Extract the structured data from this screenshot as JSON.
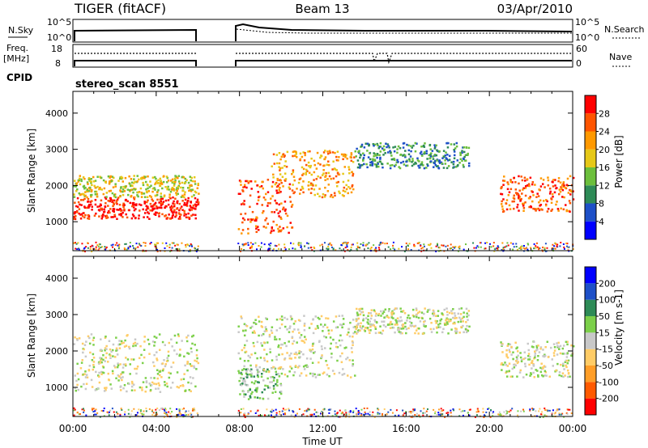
{
  "header": {
    "station": "TIGER (fitACF)",
    "beam": "Beam 13",
    "date": "03/Apr/2010"
  },
  "panels_top": {
    "nsky_label": "N.Sky",
    "nsky_ticks": [
      "10^5",
      "10^0"
    ],
    "nsearch_label": "N.Search",
    "nsearch_ticks": [
      "10^5",
      "10^0"
    ],
    "freq_label_line1": "Freq.",
    "freq_label_line2": "[MHz]",
    "freq_ticks": [
      "18",
      "8"
    ],
    "nave_label": "Nave",
    "nave_ticks": [
      "60",
      "0"
    ],
    "cpid_label": "CPID",
    "cpid_value": "stereo_scan 8551"
  },
  "chart_data": [
    {
      "type": "heatmap",
      "name": "power-panel",
      "ylabel": "Slant Range [km]",
      "yticks": [
        1000,
        2000,
        3000,
        4000
      ],
      "ylim": [
        200,
        4600
      ],
      "xlim_hours": [
        0,
        24
      ],
      "colorbar": {
        "label": "Power [dB]",
        "ticks": [
          "4",
          "8",
          "12",
          "16",
          "20",
          "24",
          "28"
        ],
        "colors": [
          "#0000ff",
          "#1e50c8",
          "#2e8b57",
          "#6cbf3c",
          "#e6c818",
          "#ff9900",
          "#ff5500",
          "#ff0000"
        ]
      },
      "scatter_bands": [
        {
          "t0": 0.0,
          "t1": 6.0,
          "r0": 1100,
          "r1": 1700,
          "level": 7
        },
        {
          "t0": 0.0,
          "t1": 6.0,
          "r0": 1700,
          "r1": 2300,
          "level": 4
        },
        {
          "t0": 7.9,
          "t1": 10.5,
          "r0": 700,
          "r1": 2200,
          "level": 6
        },
        {
          "t0": 9.5,
          "t1": 13.5,
          "r0": 1700,
          "r1": 3000,
          "level": 5
        },
        {
          "t0": 13.5,
          "t1": 19.0,
          "r0": 2500,
          "r1": 3200,
          "level": 2
        },
        {
          "t0": 20.5,
          "t1": 24.0,
          "r0": 1300,
          "r1": 2300,
          "level": 6
        }
      ]
    },
    {
      "type": "heatmap",
      "name": "velocity-panel",
      "ylabel": "Slant Range [km]",
      "yticks": [
        1000,
        2000,
        3000,
        4000
      ],
      "ylim": [
        200,
        4600
      ],
      "xlim_hours": [
        0,
        24
      ],
      "xlabel": "Time UT",
      "xticks": [
        "00:00",
        "04:00",
        "08:00",
        "12:00",
        "16:00",
        "20:00",
        "00:00"
      ],
      "colorbar": {
        "label": "Velocity [m s-1]",
        "ticks": [
          "-200",
          "-100",
          "-50",
          "-15",
          "15",
          "50",
          "100",
          "200"
        ],
        "colors": [
          "#ff0000",
          "#ff5a00",
          "#ff9e28",
          "#ffcc66",
          "#c8c8c8",
          "#7cd04a",
          "#2e8b57",
          "#1e50c8",
          "#0000ff"
        ]
      },
      "scatter_bands": [
        {
          "t0": 0.0,
          "t1": 6.0,
          "r0": 900,
          "r1": 2500,
          "level": 4
        },
        {
          "t0": 7.9,
          "t1": 10.0,
          "r0": 700,
          "r1": 1600,
          "level": 5
        },
        {
          "t0": 7.9,
          "t1": 13.5,
          "r0": 1300,
          "r1": 3000,
          "level": 4
        },
        {
          "t0": 13.5,
          "t1": 19.0,
          "r0": 2500,
          "r1": 3200,
          "level": 4
        },
        {
          "t0": 20.5,
          "t1": 24.0,
          "r0": 1300,
          "r1": 2300,
          "level": 4
        }
      ]
    }
  ]
}
